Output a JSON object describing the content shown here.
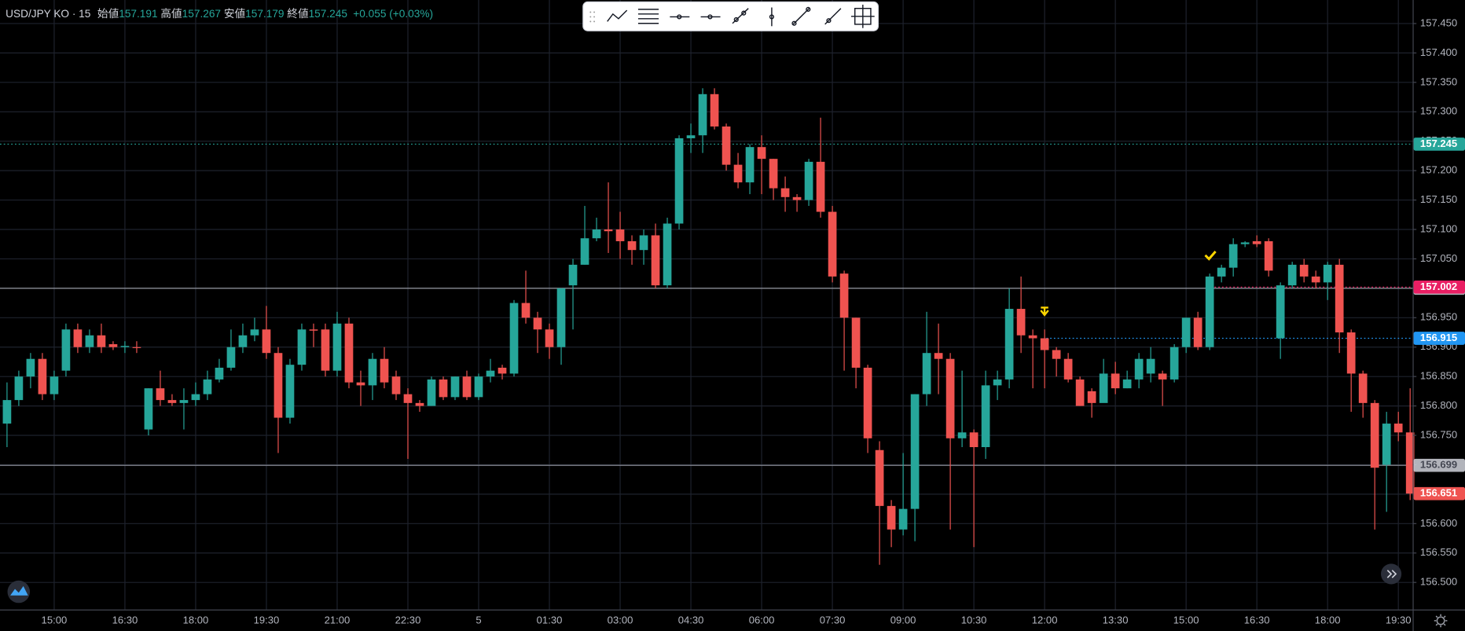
{
  "chart_data": {
    "type": "candlestick",
    "title": "USD/JPY KO · 15",
    "ohlc_legend": {
      "open_label": "始値",
      "open": 157.191,
      "high_label": "高値",
      "high": 157.267,
      "low_label": "安値",
      "low": 157.179,
      "close_label": "終値",
      "close": 157.245,
      "change": "+0.055 (+0.03%)"
    },
    "up_color": "#26a69a",
    "down_color": "#ef5350",
    "grid": true,
    "ylim": [
      156.454,
      157.49
    ],
    "yticks": [
      {
        "value": 156.5,
        "label": "156.500"
      },
      {
        "value": 156.55,
        "label": "156.550"
      },
      {
        "value": 156.6,
        "label": "156.600"
      },
      {
        "value": 156.65,
        "label": "156.650"
      },
      {
        "value": 156.7,
        "label": "156.700"
      },
      {
        "value": 156.75,
        "label": "156.750"
      },
      {
        "value": 156.8,
        "label": "156.800"
      },
      {
        "value": 156.85,
        "label": "156.850"
      },
      {
        "value": 156.9,
        "label": "156.900"
      },
      {
        "value": 156.95,
        "label": "156.950"
      },
      {
        "value": 157.0,
        "label": "157.000"
      },
      {
        "value": 157.05,
        "label": "157.050"
      },
      {
        "value": 157.1,
        "label": "157.100"
      },
      {
        "value": 157.15,
        "label": "157.150"
      },
      {
        "value": 157.2,
        "label": "157.200"
      },
      {
        "value": 157.25,
        "label": "157.250"
      },
      {
        "value": 157.3,
        "label": "157.300"
      },
      {
        "value": 157.35,
        "label": "157.350"
      },
      {
        "value": 157.4,
        "label": "157.400"
      },
      {
        "value": 157.45,
        "label": "157.450"
      }
    ],
    "categories": [
      null,
      null,
      null,
      null,
      "15:00",
      null,
      null,
      null,
      null,
      null,
      "16:30",
      null,
      null,
      null,
      null,
      null,
      "18:00",
      null,
      null,
      null,
      null,
      null,
      "19:30",
      null,
      null,
      null,
      null,
      null,
      "21:00",
      null,
      null,
      null,
      null,
      null,
      "22:30",
      null,
      null,
      null,
      null,
      null,
      "5",
      null,
      null,
      null,
      null,
      null,
      "01:30",
      null,
      null,
      null,
      null,
      null,
      "03:00",
      null,
      null,
      null,
      null,
      null,
      "04:30",
      null,
      null,
      null,
      null,
      null,
      "06:00",
      null,
      null,
      null,
      null,
      null,
      "07:30",
      null,
      null,
      null,
      null,
      null,
      "09:00",
      null,
      null,
      null,
      null,
      null,
      "10:30",
      null,
      null,
      null,
      null,
      null,
      "12:00",
      null,
      null,
      null,
      null,
      null,
      "13:30",
      null,
      null,
      null,
      null,
      null,
      "15:00",
      null,
      null,
      null,
      null,
      null,
      "16:30",
      null,
      null,
      null,
      null,
      null,
      "18:00",
      null,
      null,
      null,
      null,
      null,
      "19:30",
      null
    ],
    "open": [
      156.77,
      156.81,
      156.85,
      156.88,
      156.82,
      156.86,
      156.93,
      156.9,
      156.92,
      156.905,
      156.9,
      156.9,
      156.76,
      156.83,
      156.81,
      156.805,
      156.81,
      156.82,
      156.845,
      156.865,
      156.9,
      156.92,
      156.93,
      156.89,
      156.78,
      156.87,
      156.93,
      156.93,
      156.86,
      156.94,
      156.84,
      156.835,
      156.88,
      156.85,
      156.82,
      156.805,
      156.8,
      156.845,
      156.815,
      156.85,
      156.815,
      156.85,
      156.865,
      156.855,
      156.975,
      156.95,
      156.93,
      156.9,
      157.005,
      157.04,
      157.085,
      157.1,
      157.1,
      157.08,
      157.065,
      157.09,
      157.005,
      157.11,
      157.255,
      157.26,
      157.33,
      157.275,
      157.21,
      157.18,
      157.24,
      157.22,
      157.17,
      157.155,
      157.15,
      157.215,
      157.13,
      157.025,
      156.95,
      156.865,
      156.725,
      156.63,
      156.59,
      156.625,
      156.82,
      156.89,
      156.88,
      156.745,
      156.755,
      156.73,
      156.835,
      156.845,
      156.965,
      156.92,
      156.915,
      156.895,
      156.88,
      156.845,
      156.825,
      156.805,
      156.855,
      156.83,
      156.845,
      156.855,
      156.855,
      156.845,
      156.9,
      156.95,
      156.9,
      157.02,
      157.035,
      157.075,
      157.08,
      157.08,
      156.915,
      157.005,
      157.04,
      157.02,
      157.01,
      157.04,
      156.925,
      156.855,
      156.805,
      156.7,
      156.77,
      156.755
    ],
    "high": [
      156.84,
      156.86,
      156.89,
      156.89,
      156.86,
      156.94,
      156.94,
      156.93,
      156.94,
      156.91,
      156.91,
      156.91,
      156.83,
      156.86,
      156.82,
      156.83,
      156.84,
      156.86,
      156.88,
      156.93,
      156.94,
      156.95,
      156.97,
      156.9,
      156.88,
      156.94,
      156.94,
      156.94,
      156.96,
      156.95,
      156.86,
      156.89,
      156.9,
      156.86,
      156.83,
      156.81,
      156.85,
      156.85,
      156.85,
      156.86,
      156.855,
      156.88,
      156.87,
      156.98,
      157.03,
      156.96,
      156.94,
      157.0,
      157.05,
      157.14,
      157.12,
      157.18,
      157.13,
      157.09,
      157.1,
      157.11,
      157.12,
      157.26,
      157.28,
      157.34,
      157.34,
      157.28,
      157.23,
      157.245,
      157.26,
      157.22,
      157.19,
      157.16,
      157.22,
      157.29,
      157.14,
      157.03,
      156.95,
      156.87,
      156.74,
      156.64,
      156.72,
      156.82,
      156.96,
      156.94,
      156.89,
      156.86,
      156.76,
      156.86,
      156.86,
      157.0,
      157.02,
      156.93,
      156.93,
      156.9,
      156.89,
      156.85,
      156.83,
      156.88,
      156.875,
      156.86,
      156.89,
      156.9,
      156.86,
      156.905,
      156.95,
      156.96,
      157.025,
      157.04,
      157.085,
      157.08,
      157.09,
      157.085,
      157.01,
      157.045,
      157.05,
      157.03,
      157.045,
      157.05,
      156.93,
      156.86,
      156.81,
      156.79,
      156.79,
      156.83
    ],
    "low": [
      156.73,
      156.8,
      156.83,
      156.81,
      156.81,
      156.85,
      156.89,
      156.89,
      156.89,
      156.895,
      156.89,
      156.89,
      156.75,
      156.8,
      156.8,
      156.76,
      156.8,
      156.81,
      156.84,
      156.86,
      156.89,
      156.91,
      156.88,
      156.72,
      156.77,
      156.86,
      156.9,
      156.85,
      156.85,
      156.83,
      156.8,
      156.81,
      156.83,
      156.81,
      156.71,
      156.79,
      156.8,
      156.81,
      156.81,
      156.81,
      156.81,
      156.84,
      156.845,
      156.85,
      156.94,
      156.89,
      156.88,
      156.87,
      156.93,
      157.04,
      157.08,
      157.06,
      157.05,
      157.04,
      157.04,
      157.0,
      157.0,
      157.1,
      157.23,
      157.23,
      157.27,
      157.2,
      157.17,
      157.16,
      157.16,
      157.15,
      157.13,
      157.13,
      157.14,
      157.12,
      157.01,
      156.86,
      156.83,
      156.72,
      156.53,
      156.56,
      156.58,
      156.57,
      156.8,
      156.82,
      156.59,
      156.73,
      156.56,
      156.71,
      156.81,
      156.83,
      156.89,
      156.83,
      156.83,
      156.85,
      156.84,
      156.8,
      156.78,
      156.81,
      156.82,
      156.83,
      156.83,
      156.84,
      156.8,
      156.84,
      156.89,
      156.895,
      156.895,
      157.01,
      157.02,
      157.07,
      157.07,
      157.02,
      156.88,
      157.0,
      157.01,
      157.0,
      156.98,
      156.89,
      156.79,
      156.78,
      156.59,
      156.62,
      156.74,
      156.64
    ],
    "close": [
      156.81,
      156.85,
      156.88,
      156.82,
      156.85,
      156.93,
      156.9,
      156.92,
      156.9,
      156.9,
      156.902,
      156.899,
      156.83,
      156.81,
      156.805,
      156.81,
      156.82,
      156.845,
      156.865,
      156.9,
      156.92,
      156.93,
      156.89,
      156.78,
      156.87,
      156.93,
      156.928,
      156.86,
      156.94,
      156.84,
      156.835,
      156.88,
      156.84,
      156.82,
      156.805,
      156.8,
      156.845,
      156.815,
      156.85,
      156.815,
      156.85,
      156.86,
      156.855,
      156.975,
      156.95,
      156.93,
      156.9,
      157.0,
      157.04,
      157.085,
      157.1,
      157.097,
      157.08,
      157.065,
      157.09,
      157.005,
      157.11,
      157.255,
      157.26,
      157.33,
      157.275,
      157.21,
      157.18,
      157.24,
      157.22,
      157.17,
      157.155,
      157.15,
      157.215,
      157.13,
      157.02,
      156.95,
      156.865,
      156.745,
      156.63,
      156.59,
      156.625,
      156.82,
      156.89,
      156.88,
      156.745,
      156.755,
      156.73,
      156.835,
      156.845,
      156.965,
      156.92,
      156.915,
      156.895,
      156.88,
      156.845,
      156.8,
      156.805,
      156.855,
      156.83,
      156.845,
      156.88,
      156.88,
      156.845,
      156.9,
      156.95,
      156.9,
      157.02,
      157.035,
      157.075,
      157.078,
      157.075,
      157.03,
      157.005,
      157.04,
      157.02,
      157.01,
      157.04,
      156.925,
      156.855,
      156.805,
      156.695,
      156.77,
      156.755,
      156.651
    ],
    "price_lines": [
      {
        "value": 157.245,
        "color": "#26a69a",
        "style": "dotted"
      },
      {
        "value": 157.0,
        "label": "157.000",
        "color": "#9598a1",
        "style": "solid"
      },
      {
        "value": 156.699,
        "color": "#9598a1",
        "style": "solid"
      },
      {
        "value": 157.002,
        "color": "#e91e63",
        "style": "dotted"
      },
      {
        "value": 156.915,
        "color": "#2196f3",
        "style": "dotted"
      },
      {
        "value": 156.651,
        "color": "#ef5350",
        "style": "none"
      }
    ]
  }
}
